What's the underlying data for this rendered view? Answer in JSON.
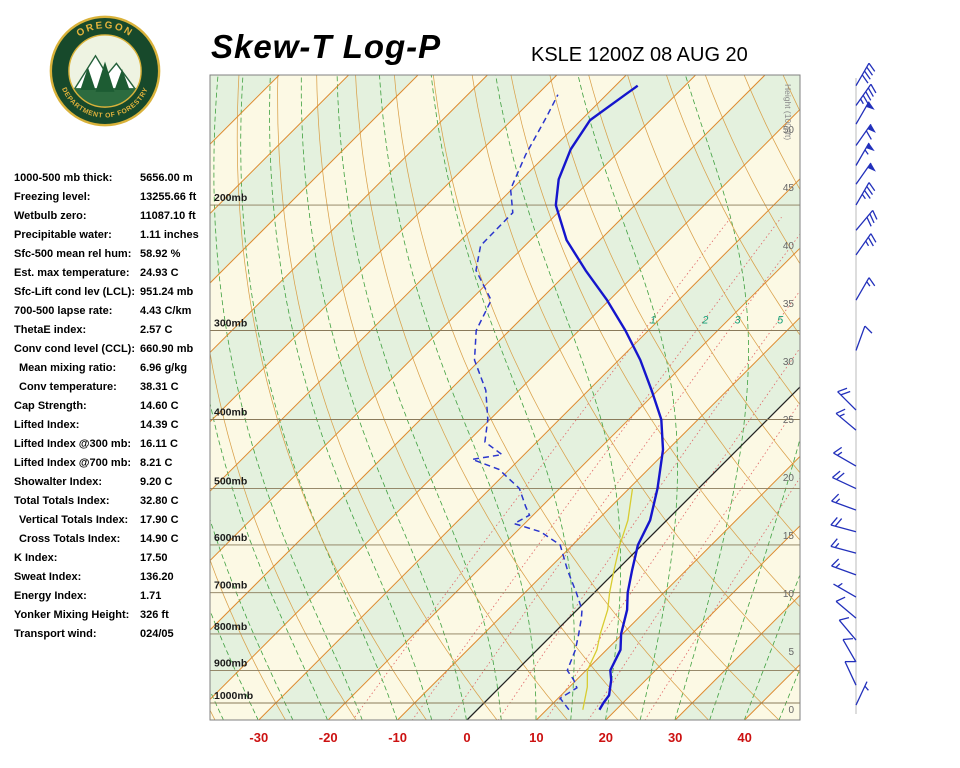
{
  "header": {
    "title": "Skew-T Log-P",
    "station": "KSLE 1200Z 08 AUG 20",
    "logo": {
      "top": "OREGON",
      "bottom": "DEPARTMENT OF FORESTRY"
    }
  },
  "stats": {
    "rows": [
      {
        "label": "1000-500 mb thick:",
        "value": "5656.00 m",
        "indent": false
      },
      {
        "label": "Freezing level:",
        "value": "13255.66 ft",
        "indent": false
      },
      {
        "label": "Wetbulb zero:",
        "value": "11087.10 ft",
        "indent": false
      },
      {
        "label": "Precipitable water:",
        "value": "1.11 inches",
        "indent": false
      },
      {
        "label": "Sfc-500 mean rel hum:",
        "value": "58.92 %",
        "indent": false
      },
      {
        "label": "Est. max temperature:",
        "value": "24.93 C",
        "indent": false
      },
      {
        "label": "Sfc-Lift cond lev (LCL):",
        "value": "951.24 mb",
        "indent": false
      },
      {
        "label": "700-500 lapse rate:",
        "value": "4.43 C/km",
        "indent": false
      },
      {
        "label": "ThetaE index:",
        "value": "2.57 C",
        "indent": false
      },
      {
        "label": "Conv cond level (CCL):",
        "value": "660.90 mb",
        "indent": false
      },
      {
        "label": "Mean mixing ratio:",
        "value": "6.96 g/kg",
        "indent": true
      },
      {
        "label": "Conv temperature:",
        "value": "38.31 C",
        "indent": true
      },
      {
        "label": "Cap Strength:",
        "value": "14.60 C",
        "indent": false
      },
      {
        "label": "Lifted Index:",
        "value": "14.39 C",
        "indent": false
      },
      {
        "label": "Lifted Index @300 mb:",
        "value": "16.11 C",
        "indent": false
      },
      {
        "label": "Lifted Index @700 mb:",
        "value": "8.21 C",
        "indent": false
      },
      {
        "label": "Showalter Index:",
        "value": "9.20 C",
        "indent": false
      },
      {
        "label": "Total Totals Index:",
        "value": "32.80 C",
        "indent": false
      },
      {
        "label": "Vertical Totals Index:",
        "value": "17.90 C",
        "indent": true
      },
      {
        "label": "Cross Totals Index:",
        "value": "14.90 C",
        "indent": true
      },
      {
        "label": "K Index:",
        "value": "17.50",
        "indent": false
      },
      {
        "label": "Sweat Index:",
        "value": "136.20",
        "indent": false
      },
      {
        "label": "Energy Index:",
        "value": "1.71",
        "indent": false
      },
      {
        "label": "Yonker Mixing Height:",
        "value": "326 ft",
        "indent": false
      },
      {
        "label": "Transport wind:",
        "value": "024/05",
        "indent": false
      }
    ]
  },
  "chart_data": {
    "type": "line",
    "subtype": "skew-t-log-p",
    "title": "Skew-T Log-P",
    "x_axis": {
      "ticks_c": [
        -30,
        -20,
        -10,
        0,
        10,
        20,
        30,
        40
      ]
    },
    "pressure_levels_mb": [
      200,
      300,
      400,
      500,
      600,
      700,
      800,
      900,
      1000
    ],
    "pressure_label_suffix": "mb",
    "height_scale": {
      "label": "Height (1000ft)",
      "ticks": [
        0,
        5,
        10,
        15,
        20,
        25,
        30,
        35,
        40,
        45,
        50
      ]
    },
    "isotherms_c": [
      -130,
      -120,
      -110,
      -100,
      -90,
      -80,
      -70,
      -60,
      -50,
      -40,
      -30,
      -20,
      -10,
      0,
      10,
      20,
      30,
      40,
      50
    ],
    "dry_adiabats_c": [
      -40,
      -30,
      -20,
      -10,
      0,
      10,
      20,
      30,
      40,
      50,
      60,
      70,
      80,
      90,
      100,
      110,
      120,
      130,
      140,
      150
    ],
    "moist_adiabats_c": [
      -40,
      -35,
      -30,
      -25,
      -20,
      -15,
      -10,
      -5,
      0,
      5,
      10,
      15,
      20,
      25,
      30,
      35,
      40,
      45
    ],
    "mixing_ratio_lines_gkg": [
      1,
      2,
      3,
      5,
      8,
      12,
      20
    ],
    "mixing_ratio_labels_gkg": [
      1,
      2,
      3,
      5
    ],
    "series": [
      {
        "name": "temperature",
        "points_p_t": [
          [
            1022,
            17.6
          ],
          [
            1000,
            17.2
          ],
          [
            975,
            16.9
          ],
          [
            928,
            15.0
          ],
          [
            900,
            13.5
          ],
          [
            842,
            12.0
          ],
          [
            800,
            9.8
          ],
          [
            740,
            7.2
          ],
          [
            700,
            4.8
          ],
          [
            651,
            2.2
          ],
          [
            600,
            -0.6
          ],
          [
            554,
            -2.4
          ],
          [
            500,
            -5.9
          ],
          [
            441,
            -10.7
          ],
          [
            400,
            -15.3
          ],
          [
            364,
            -20.9
          ],
          [
            330,
            -26.9
          ],
          [
            300,
            -33.3
          ],
          [
            272,
            -40.3
          ],
          [
            247,
            -47.7
          ],
          [
            224,
            -54.8
          ],
          [
            200,
            -61.4
          ],
          [
            184,
            -64.7
          ],
          [
            167,
            -67.3
          ],
          [
            152,
            -68.7
          ],
          [
            140,
            -67.3
          ],
          [
            136,
            -66.8
          ]
        ]
      },
      {
        "name": "dewpoint",
        "points_p_t": [
          [
            1022,
            13.2
          ],
          [
            1000,
            11.5
          ],
          [
            985,
            10.3
          ],
          [
            952,
            11.2
          ],
          [
            928,
            9.6
          ],
          [
            900,
            7.3
          ],
          [
            842,
            5.5
          ],
          [
            800,
            3.7
          ],
          [
            760,
            1.8
          ],
          [
            740,
            0.7
          ],
          [
            700,
            -2.6
          ],
          [
            651,
            -7.1
          ],
          [
            600,
            -11.8
          ],
          [
            575,
            -16.5
          ],
          [
            560,
            -21.5
          ],
          [
            545,
            -20.5
          ],
          [
            530,
            -22.3
          ],
          [
            500,
            -25.8
          ],
          [
            470,
            -31.5
          ],
          [
            455,
            -36.8
          ],
          [
            448,
            -33.2
          ],
          [
            430,
            -37.5
          ],
          [
            400,
            -40.3
          ],
          [
            364,
            -44.8
          ],
          [
            330,
            -50.8
          ],
          [
            300,
            -54.8
          ],
          [
            272,
            -57.0
          ],
          [
            247,
            -63.5
          ],
          [
            228,
            -66.4
          ],
          [
            205,
            -66.5
          ],
          [
            190,
            -70.2
          ],
          [
            170,
            -73.0
          ],
          [
            150,
            -75.5
          ],
          [
            140,
            -77.0
          ]
        ]
      },
      {
        "name": "wetbulb",
        "points_p_t": [
          [
            1022,
            15.2
          ],
          [
            950,
            12.6
          ],
          [
            900,
            10.2
          ],
          [
            842,
            8.6
          ],
          [
            800,
            6.8
          ],
          [
            740,
            4.4
          ],
          [
            700,
            2.2
          ],
          [
            651,
            -0.4
          ],
          [
            600,
            -3.2
          ],
          [
            554,
            -5.6
          ],
          [
            500,
            -9.5
          ]
        ]
      }
    ],
    "wind_barbs": [
      {
        "p": 1007,
        "dir": 25,
        "spd": 5
      },
      {
        "p": 944,
        "dir": 335,
        "spd": 10
      },
      {
        "p": 876,
        "dir": 330,
        "spd": 10
      },
      {
        "p": 816,
        "dir": 320,
        "spd": 10
      },
      {
        "p": 760,
        "dir": 310,
        "spd": 10
      },
      {
        "p": 710,
        "dir": 300,
        "spd": 5
      },
      {
        "p": 661,
        "dir": 290,
        "spd": 15
      },
      {
        "p": 616,
        "dir": 285,
        "spd": 15
      },
      {
        "p": 575,
        "dir": 285,
        "spd": 20
      },
      {
        "p": 536,
        "dir": 290,
        "spd": 15
      },
      {
        "p": 500,
        "dir": 295,
        "spd": 20
      },
      {
        "p": 465,
        "dir": 300,
        "spd": 15
      },
      {
        "p": 414,
        "dir": 310,
        "spd": 15
      },
      {
        "p": 388,
        "dir": 315,
        "spd": 20
      },
      {
        "p": 320,
        "dir": 20,
        "spd": 10
      },
      {
        "p": 272,
        "dir": 30,
        "spd": 15
      },
      {
        "p": 235,
        "dir": 35,
        "spd": 25
      },
      {
        "p": 217,
        "dir": 40,
        "spd": 30
      },
      {
        "p": 200,
        "dir": 30,
        "spd": 35
      },
      {
        "p": 187,
        "dir": 35,
        "spd": 50
      },
      {
        "p": 176,
        "dir": 30,
        "spd": 55
      },
      {
        "p": 165,
        "dir": 35,
        "spd": 60
      },
      {
        "p": 154,
        "dir": 30,
        "spd": 50
      },
      {
        "p": 145,
        "dir": 35,
        "spd": 45
      },
      {
        "p": 136,
        "dir": 30,
        "spd": 40
      }
    ],
    "colors": {
      "isotherm": "#de8a2e",
      "dry_adiabat": "#d9a04a",
      "moist_adiabat": "#3fa03f",
      "mixing_ratio": "#e06666",
      "mixing_label": "#18a078",
      "band_cream": "#fcf9e4",
      "band_green": "#e4f1de",
      "pressure_line": "#8a7a5a",
      "zero_isotherm": "#222222",
      "temperature": "#1515cc",
      "dewpoint": "#2a35cc",
      "wetbulb": "#d8cc30",
      "axis_red": "#cc1111",
      "barb": "#2230bb",
      "height_label": "#666666"
    }
  }
}
